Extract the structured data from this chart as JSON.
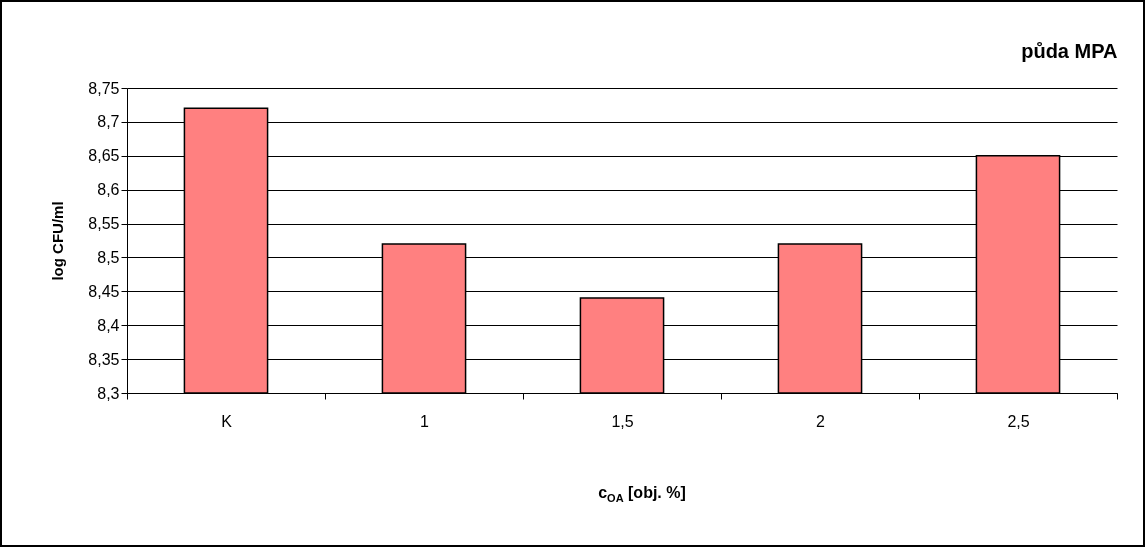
{
  "chart_data": {
    "type": "bar",
    "title": "půda MPA",
    "xlabel": "c$_{OA}$ [obj. %]",
    "ylabel": "log CFU/ml",
    "categories": [
      "K",
      "1",
      "1,5",
      "2",
      "2,5"
    ],
    "values": [
      8.72,
      8.52,
      8.44,
      8.52,
      8.65
    ],
    "color": "#ff8080",
    "ylim": [
      8.3,
      8.75
    ],
    "yticks": [
      {
        "value": 8.3,
        "label": "8,3"
      },
      {
        "value": 8.35,
        "label": "8,35"
      },
      {
        "value": 8.4,
        "label": "8,4"
      },
      {
        "value": 8.45,
        "label": "8,45"
      },
      {
        "value": 8.5,
        "label": "8,5"
      },
      {
        "value": 8.55,
        "label": "8,55"
      },
      {
        "value": 8.6,
        "label": "8,6"
      },
      {
        "value": 8.65,
        "label": "8,65"
      },
      {
        "value": 8.7,
        "label": "8,7"
      },
      {
        "value": 8.75,
        "label": "8,75"
      }
    ],
    "grid": "y"
  }
}
